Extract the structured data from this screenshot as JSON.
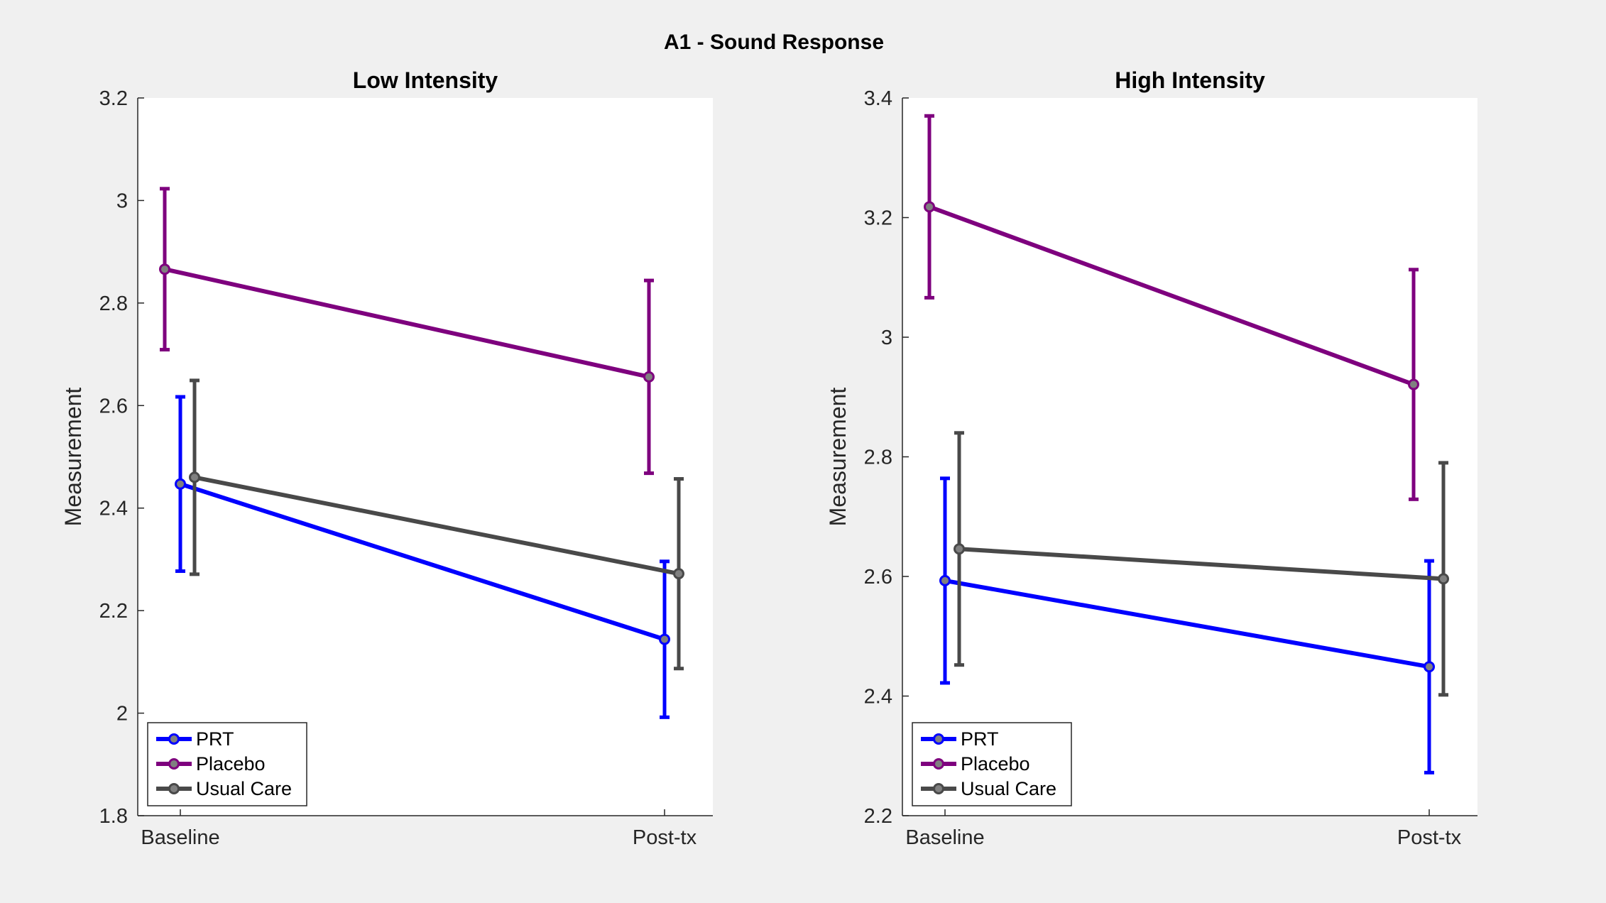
{
  "figure": {
    "title": "A1 - Sound Response",
    "background": "#f0f0f0"
  },
  "chart_data": [
    {
      "type": "line",
      "title": "Low Intensity",
      "xlabel": "",
      "ylabel": "Measurement",
      "categories": [
        "Baseline",
        "Post-tx"
      ],
      "ylim": [
        1.8,
        3.2
      ],
      "yticks": [
        "1.8",
        "2",
        "2.2",
        "2.4",
        "2.6",
        "2.8",
        "3",
        "3.2"
      ],
      "grid": false,
      "legend_position": "bottom-left",
      "series": [
        {
          "name": "PRT",
          "color": "#0000ff",
          "values": [
            2.447,
            2.144
          ],
          "err_low": [
            2.277,
            1.992
          ],
          "err_high": [
            2.617,
            2.296
          ]
        },
        {
          "name": "Placebo",
          "color": "#7e007e",
          "values": [
            2.866,
            2.656
          ],
          "err_low": [
            2.709,
            2.468
          ],
          "err_high": [
            3.023,
            2.844
          ]
        },
        {
          "name": "Usual Care",
          "color": "#494949",
          "values": [
            2.46,
            2.272
          ],
          "err_low": [
            2.271,
            2.087
          ],
          "err_high": [
            2.649,
            2.457
          ]
        }
      ]
    },
    {
      "type": "line",
      "title": "High Intensity",
      "xlabel": "",
      "ylabel": "Measurement",
      "categories": [
        "Baseline",
        "Post-tx"
      ],
      "ylim": [
        2.2,
        3.4
      ],
      "yticks": [
        "2.2",
        "2.4",
        "2.6",
        "2.8",
        "3",
        "3.2",
        "3.4"
      ],
      "grid": false,
      "legend_position": "bottom-left",
      "series": [
        {
          "name": "PRT",
          "color": "#0000ff",
          "values": [
            2.593,
            2.449
          ],
          "err_low": [
            2.422,
            2.272
          ],
          "err_high": [
            2.764,
            2.626
          ]
        },
        {
          "name": "Placebo",
          "color": "#7e007e",
          "values": [
            3.218,
            2.921
          ],
          "err_low": [
            3.066,
            2.729
          ],
          "err_high": [
            3.37,
            3.113
          ]
        },
        {
          "name": "Usual Care",
          "color": "#494949",
          "values": [
            2.646,
            2.596
          ],
          "err_low": [
            2.452,
            2.402
          ],
          "err_high": [
            2.84,
            2.79
          ]
        }
      ]
    }
  ]
}
